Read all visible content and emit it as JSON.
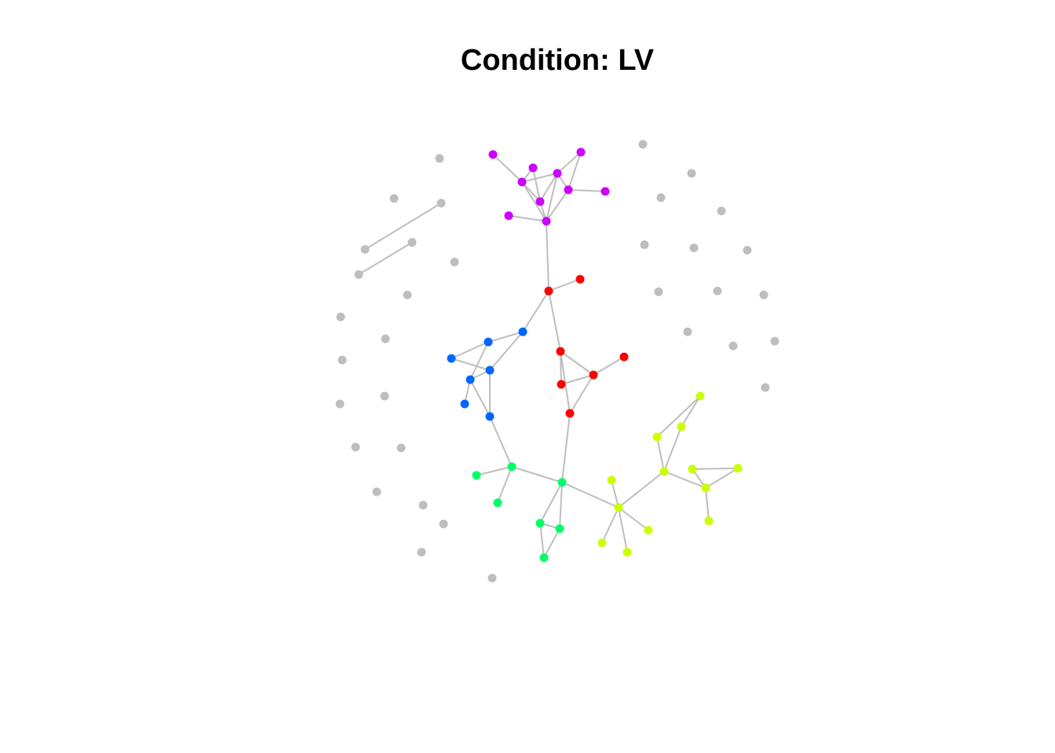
{
  "title": "Condition: LV",
  "colors": {
    "edge": "#bebebe",
    "unclustered": "#bebebe",
    "purple": "#cc00ff",
    "red": "#ff0000",
    "blue": "#0066ff",
    "green": "#00ff66",
    "yellow": "#ccff00"
  },
  "network": {
    "node_count": 82,
    "clusters": [
      {
        "color": "purple",
        "nodes": [
          "p1",
          "p2",
          "p3",
          "p4",
          "p5",
          "p6",
          "p7",
          "p8",
          "p9",
          "p10"
        ]
      },
      {
        "color": "red",
        "nodes": [
          "r1",
          "r2",
          "r3",
          "r4",
          "r5",
          "r6",
          "r7"
        ]
      },
      {
        "color": "blue",
        "nodes": [
          "b1",
          "b2",
          "b3",
          "b4",
          "b5",
          "b6",
          "b7"
        ]
      },
      {
        "color": "green",
        "nodes": [
          "g1",
          "g2",
          "g3",
          "g4",
          "g5",
          "g6",
          "g7"
        ]
      },
      {
        "color": "yellow",
        "nodes": [
          "y1",
          "y2",
          "y3",
          "y4",
          "y5",
          "y6",
          "y7",
          "y8",
          "y9",
          "y10",
          "y11",
          "y12",
          "y13"
        ]
      }
    ],
    "edges": [
      [
        "p1",
        "p4"
      ],
      [
        "p2",
        "p4"
      ],
      [
        "p2",
        "p6"
      ],
      [
        "p3",
        "p5"
      ],
      [
        "p3",
        "p7"
      ],
      [
        "p4",
        "p5"
      ],
      [
        "p4",
        "p6"
      ],
      [
        "p4",
        "p8"
      ],
      [
        "p5",
        "p6"
      ],
      [
        "p5",
        "p7"
      ],
      [
        "p5",
        "p8"
      ],
      [
        "p6",
        "p8"
      ],
      [
        "p7",
        "p8"
      ],
      [
        "p7",
        "p10"
      ],
      [
        "p8",
        "p9"
      ],
      [
        "p8",
        "r1"
      ],
      [
        "r1",
        "r2"
      ],
      [
        "r1",
        "r3"
      ],
      [
        "r1",
        "b1"
      ],
      [
        "r3",
        "r4"
      ],
      [
        "r3",
        "r5"
      ],
      [
        "r3",
        "r6"
      ],
      [
        "r4",
        "r6"
      ],
      [
        "r5",
        "r6"
      ],
      [
        "r6",
        "r7"
      ],
      [
        "r4",
        "g2"
      ],
      [
        "b1",
        "b2"
      ],
      [
        "b1",
        "b3"
      ],
      [
        "b2",
        "b4"
      ],
      [
        "b2",
        "b5"
      ],
      [
        "b3",
        "b4"
      ],
      [
        "b3",
        "b5"
      ],
      [
        "b3",
        "b7"
      ],
      [
        "b4",
        "b6"
      ],
      [
        "b4",
        "b7"
      ],
      [
        "b7",
        "g1"
      ],
      [
        "g1",
        "g3"
      ],
      [
        "g1",
        "g2"
      ],
      [
        "g1",
        "g4"
      ],
      [
        "g2",
        "g5"
      ],
      [
        "g2",
        "g6"
      ],
      [
        "g5",
        "g6"
      ],
      [
        "g5",
        "g7"
      ],
      [
        "g6",
        "g7"
      ],
      [
        "g2",
        "y1"
      ],
      [
        "y1",
        "y2"
      ],
      [
        "y1",
        "y3"
      ],
      [
        "y1",
        "y4"
      ],
      [
        "y1",
        "y5"
      ],
      [
        "y1",
        "y6"
      ],
      [
        "y6",
        "y7"
      ],
      [
        "y6",
        "y8"
      ],
      [
        "y6",
        "y9"
      ],
      [
        "y8",
        "y10"
      ],
      [
        "y7",
        "y10"
      ],
      [
        "y9",
        "y11"
      ],
      [
        "y9",
        "y12"
      ],
      [
        "y9",
        "y13"
      ],
      [
        "y12",
        "y11"
      ],
      [
        "u3",
        "u4"
      ],
      [
        "u5",
        "u6"
      ]
    ]
  }
}
